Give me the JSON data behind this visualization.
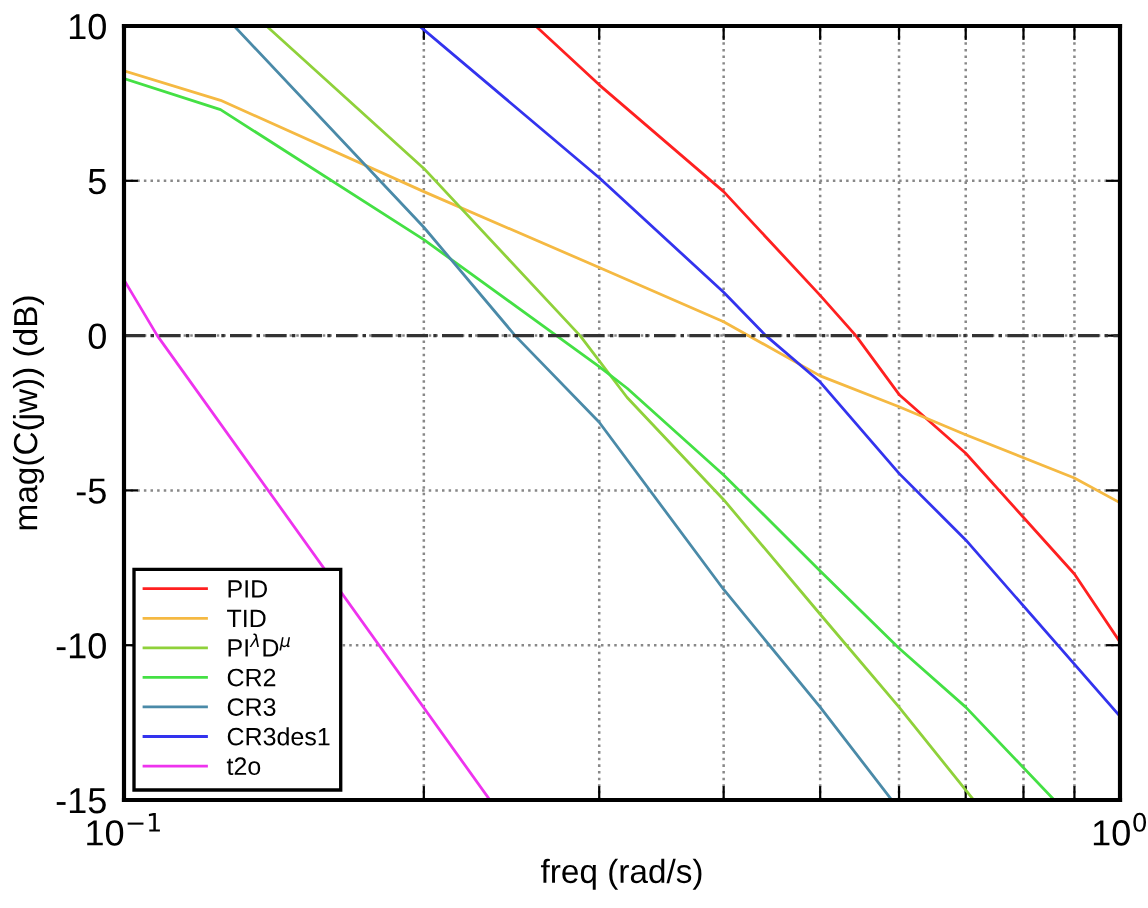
{
  "chart_data": {
    "type": "line",
    "xlabel": "freq (rad/s)",
    "ylabel": "mag(C(jw)) (dB)",
    "log": "x",
    "xlim": [
      0.1,
      1
    ],
    "xticks": [
      {
        "value": 0.1,
        "label": "10$^{−1}$"
      },
      {
        "value": 0.2,
        "label": null
      },
      {
        "value": 0.3,
        "label": null
      },
      {
        "value": 0.4,
        "label": null
      },
      {
        "value": 0.5,
        "label": null
      },
      {
        "value": 0.6,
        "label": null
      },
      {
        "value": 0.7,
        "label": null
      },
      {
        "value": 0.8,
        "label": null
      },
      {
        "value": 0.9,
        "label": null
      },
      {
        "value": 1,
        "label": "10$^{0}$"
      }
    ],
    "ylim": [
      -15,
      10
    ],
    "yticks": [
      -15,
      -10,
      -5,
      0,
      5,
      10
    ],
    "grid": true,
    "legend": "bottom left",
    "line_style": "solid",
    "marker": "none",
    "ref_lines": [
      {
        "axis": "y",
        "value": 0,
        "color": "#333333",
        "line_style": "dashdot"
      }
    ],
    "series": [
      {
        "name": "PID",
        "color": "#ff2020",
        "x": [
          0.259,
          0.3,
          0.4,
          0.5,
          0.543,
          0.6,
          0.7,
          0.9,
          1
        ],
        "values": [
          10,
          8.1,
          4.65,
          1.3,
          0,
          -1.9,
          -3.8,
          -7.7,
          -9.9
        ]
      },
      {
        "name": "TID",
        "color": "#f5b942",
        "x": [
          0.1,
          0.125,
          0.2,
          0.3,
          0.4,
          0.5,
          0.6,
          0.7,
          0.9,
          1
        ],
        "values": [
          8.55,
          7.6,
          4.65,
          2.2,
          0.45,
          -1.3,
          -2.3,
          -3.2,
          -4.6,
          -5.4
        ]
      },
      {
        "name": "PI$^{λ}$D$^{μ}$",
        "color": "#8fd13a",
        "x": [
          0.139,
          0.2,
          0.287,
          0.32,
          0.4,
          0.5,
          0.6,
          0.713
        ],
        "values": [
          10,
          5.4,
          0,
          -2.0,
          -5.3,
          -9.0,
          -12.0,
          -15
        ]
      },
      {
        "name": "CR2",
        "color": "#44e044",
        "x": [
          0.1,
          0.125,
          0.2,
          0.3,
          0.32,
          0.4,
          0.5,
          0.6,
          0.7,
          0.859
        ],
        "values": [
          8.3,
          7.3,
          3.1,
          -1.0,
          -1.7,
          -4.5,
          -7.6,
          -10.1,
          -12.0,
          -15
        ]
      },
      {
        "name": "CR3",
        "color": "#4a8aa8",
        "x": [
          0.129,
          0.2,
          0.247,
          0.3,
          0.4,
          0.5,
          0.59
        ],
        "values": [
          10,
          3.5,
          0,
          -2.8,
          -8.2,
          -12.0,
          -15
        ]
      },
      {
        "name": "CR3des1",
        "color": "#3333ee",
        "x": [
          0.198,
          0.3,
          0.4,
          0.441,
          0.5,
          0.6,
          0.7,
          1
        ],
        "values": [
          10,
          5.1,
          1.4,
          0,
          -1.5,
          -4.45,
          -6.6,
          -12.3
        ]
      },
      {
        "name": "t2o",
        "color": "#ee33ee",
        "x": [
          0.1,
          0.108,
          0.233
        ],
        "values": [
          1.8,
          0,
          -15
        ]
      }
    ]
  }
}
